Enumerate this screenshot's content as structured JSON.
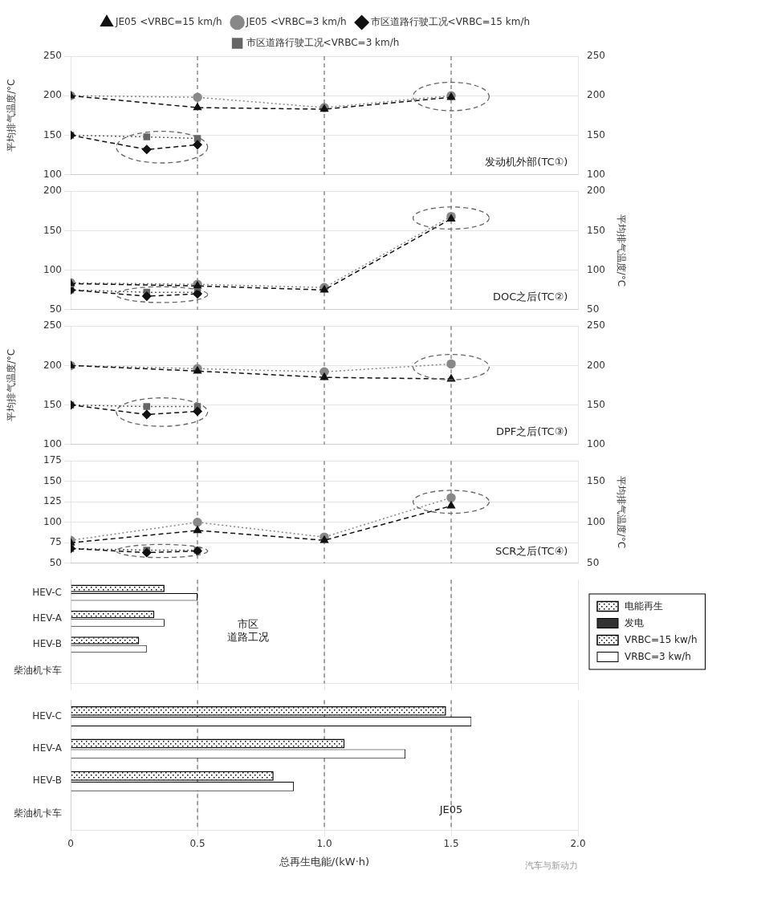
{
  "chart_data": [
    {
      "type": "line",
      "annotations": [
        "发动机外部(TC①)"
      ],
      "ylabel": "平均排气温度/°C",
      "legend": "top",
      "grid": true,
      "tick_labels": "y",
      "xlim": [
        0,
        2.0
      ],
      "xticks": [
        0,
        0.5,
        1.0,
        1.5,
        2.0
      ],
      "ylim": [
        100,
        250
      ],
      "yticks": [
        100,
        150,
        200,
        250
      ],
      "y2lim": [
        100,
        250
      ],
      "y2ticks": [
        100,
        150,
        200,
        250
      ],
      "vlines": [
        0.5,
        1.0,
        1.5
      ],
      "ellipses": [
        {
          "x": 0.36,
          "y": 135,
          "x_radius": 0.18,
          "y_radius": 20
        },
        {
          "x": 1.5,
          "y": 199,
          "x_radius": 0.15,
          "y_radius": 18
        }
      ],
      "series": [
        {
          "name": "JE05 <VRBC=15 km/h",
          "color": "#111111",
          "marker": "triangle",
          "line_style": "dashed",
          "x": [
            0,
            0.5,
            1.0,
            1.5
          ],
          "values": [
            200,
            185,
            183,
            198
          ]
        },
        {
          "name": "JE05 <VRBC=3 km/h",
          "color": "#888888",
          "marker": "circle",
          "line_style": "dotted",
          "x": [
            0,
            0.5,
            1.0,
            1.5
          ],
          "values": [
            200,
            198,
            185,
            200
          ]
        },
        {
          "name": "市区道路行驶工况<VRBC=15 km/h",
          "color": "#111111",
          "marker": "diamond",
          "line_style": "dashed",
          "x": [
            0,
            0.3,
            0.5
          ],
          "values": [
            150,
            132,
            138
          ]
        },
        {
          "name": "市区道路行驶工况<VRBC=3 km/h",
          "color": "#666666",
          "marker": "square",
          "line_style": "dotted",
          "x": [
            0,
            0.3,
            0.5
          ],
          "values": [
            150,
            148,
            146
          ]
        }
      ]
    },
    {
      "type": "line",
      "annotations": [
        "DOC之后(TC②)"
      ],
      "y2label": "平均排气温度/°C",
      "grid": true,
      "tick_labels": "y",
      "xlim": [
        0,
        2.0
      ],
      "xticks": [
        0,
        0.5,
        1.0,
        1.5,
        2.0
      ],
      "ylim": [
        50,
        200
      ],
      "yticks": [
        50,
        100,
        150,
        200
      ],
      "y2lim": [
        50,
        200
      ],
      "y2ticks": [
        50,
        100,
        150,
        200
      ],
      "vlines": [
        0.5,
        1.0,
        1.5
      ],
      "ellipses": [
        {
          "x": 0.36,
          "y": 69,
          "x_radius": 0.18,
          "y_radius": 10
        },
        {
          "x": 1.5,
          "y": 166,
          "x_radius": 0.15,
          "y_radius": 14
        }
      ],
      "series": [
        {
          "name": "JE05 <VRBC=15 km/h",
          "color": "#111111",
          "marker": "triangle",
          "line_style": "dashed",
          "x": [
            0,
            0.5,
            1.0,
            1.5
          ],
          "values": [
            83,
            80,
            75,
            165
          ]
        },
        {
          "name": "JE05 <VRBC=3 km/h",
          "color": "#888888",
          "marker": "circle",
          "line_style": "dotted",
          "x": [
            0,
            0.5,
            1.0,
            1.5
          ],
          "values": [
            84,
            82,
            78,
            168
          ]
        },
        {
          "name": "市区道路行驶工况<VRBC=15 km/h",
          "color": "#111111",
          "marker": "diamond",
          "line_style": "dashed",
          "x": [
            0,
            0.3,
            0.5
          ],
          "values": [
            75,
            67,
            70
          ]
        },
        {
          "name": "市区道路行驶工况<VRBC=3 km/h",
          "color": "#666666",
          "marker": "square",
          "line_style": "dotted",
          "x": [
            0,
            0.3,
            0.5
          ],
          "values": [
            75,
            72,
            72
          ]
        }
      ]
    },
    {
      "type": "line",
      "annotations": [
        "DPF之后(TC③)"
      ],
      "ylabel": "平均排气温度/°C",
      "grid": true,
      "tick_labels": "y",
      "xlim": [
        0,
        2.0
      ],
      "xticks": [
        0,
        0.5,
        1.0,
        1.5,
        2.0
      ],
      "ylim": [
        100,
        250
      ],
      "yticks": [
        100,
        150,
        200,
        250
      ],
      "y2lim": [
        100,
        250
      ],
      "y2ticks": [
        100,
        150,
        200,
        250
      ],
      "vlines": [
        0.5,
        1.0,
        1.5
      ],
      "ellipses": [
        {
          "x": 0.36,
          "y": 141,
          "x_radius": 0.18,
          "y_radius": 18
        },
        {
          "x": 1.5,
          "y": 198,
          "x_radius": 0.15,
          "y_radius": 16
        }
      ],
      "series": [
        {
          "name": "JE05 <VRBC=15 km/h",
          "color": "#111111",
          "marker": "triangle",
          "line_style": "dashed",
          "x": [
            0,
            0.5,
            1.0,
            1.5
          ],
          "values": [
            200,
            193,
            185,
            183
          ]
        },
        {
          "name": "JE05 <VRBC=3 km/h",
          "color": "#888888",
          "marker": "circle",
          "line_style": "dotted",
          "x": [
            0,
            0.5,
            1.0,
            1.5
          ],
          "values": [
            200,
            196,
            192,
            202
          ]
        },
        {
          "name": "市区道路行驶工况<VRBC=15 km/h",
          "color": "#111111",
          "marker": "diamond",
          "line_style": "dashed",
          "x": [
            0,
            0.3,
            0.5
          ],
          "values": [
            150,
            138,
            142
          ]
        },
        {
          "name": "市区道路行驶工况<VRBC=3 km/h",
          "color": "#666666",
          "marker": "square",
          "line_style": "dotted",
          "x": [
            0,
            0.3,
            0.5
          ],
          "values": [
            150,
            148,
            148
          ]
        }
      ]
    },
    {
      "type": "line",
      "annotations": [
        "SCR之后(TC④)"
      ],
      "y2label": "平均排气温度/°C",
      "grid": true,
      "tick_labels": "y",
      "xlim": [
        0,
        2.0
      ],
      "xticks": [
        0,
        0.5,
        1.0,
        1.5,
        2.0
      ],
      "ylim": [
        50,
        175
      ],
      "yticks": [
        50,
        75,
        100,
        125,
        150,
        175
      ],
      "y2lim": [
        50,
        175
      ],
      "y2ticks": [
        50,
        100,
        150
      ],
      "vlines": [
        0.5,
        1.0,
        1.5
      ],
      "ellipses": [
        {
          "x": 0.36,
          "y": 65,
          "x_radius": 0.18,
          "y_radius": 8
        },
        {
          "x": 1.5,
          "y": 125,
          "x_radius": 0.15,
          "y_radius": 14
        }
      ],
      "series": [
        {
          "name": "JE05 <VRBC=15 km/h",
          "color": "#111111",
          "marker": "triangle",
          "line_style": "dashed",
          "x": [
            0,
            0.5,
            1.0,
            1.5
          ],
          "values": [
            75,
            90,
            78,
            120
          ]
        },
        {
          "name": "JE05 <VRBC=3 km/h",
          "color": "#888888",
          "marker": "circle",
          "line_style": "dotted",
          "x": [
            0,
            0.5,
            1.0,
            1.5
          ],
          "values": [
            78,
            100,
            82,
            130
          ]
        },
        {
          "name": "市区道路行驶工况<VRBC=15 km/h",
          "color": "#111111",
          "marker": "diamond",
          "line_style": "dashed",
          "x": [
            0,
            0.3,
            0.5
          ],
          "values": [
            68,
            63,
            65
          ]
        },
        {
          "name": "市区道路行驶工况<VRBC=3 km/h",
          "color": "#666666",
          "marker": "square",
          "line_style": "dotted",
          "x": [
            0,
            0.3,
            0.5
          ],
          "values": [
            68,
            66,
            66
          ]
        }
      ]
    },
    {
      "type": "bar",
      "orientation": "horizontal",
      "annotations": [
        "市区\n道路工况"
      ],
      "legend": "right",
      "grid": true,
      "tick_labels": "y",
      "categories": [
        "柴油机卡车",
        "HEV-B",
        "HEV-A",
        "HEV-C"
      ],
      "xlim": [
        0,
        2.0
      ],
      "xticks": [
        0,
        0.5,
        1.0,
        1.5,
        2.0
      ],
      "vlines": [
        0.5,
        1.0,
        1.5
      ],
      "series": [
        {
          "name": "电能再生",
          "color": "#ffffff",
          "marker": "dots",
          "values": [
            null,
            null,
            null,
            null
          ]
        },
        {
          "name": "发电",
          "color": "#333333",
          "values": [
            null,
            null,
            null,
            null
          ]
        },
        {
          "name": "VRBC=15 kw/h",
          "color": "#ffffff",
          "marker": "dots",
          "values": [
            null,
            0.27,
            0.33,
            0.37
          ]
        },
        {
          "name": "VRBC=3 kw/h",
          "color": "#ffffff",
          "values": [
            null,
            0.3,
            0.37,
            0.5
          ]
        }
      ]
    },
    {
      "type": "bar",
      "orientation": "horizontal",
      "annotations": [
        "JE05",
        "汽车与新动力"
      ],
      "xlabel": "总再生电能/(kW·h)",
      "grid": true,
      "categories": [
        "柴油机卡车",
        "HEV-B",
        "HEV-A",
        "HEV-C"
      ],
      "xlim": [
        0,
        2.0
      ],
      "xticks": [
        0,
        0.5,
        {
          "value": 1.0,
          "label": "1.0"
        },
        1.5,
        {
          "value": 2.0,
          "label": "2.0"
        }
      ],
      "vlines": [
        0.5,
        1.0,
        1.5
      ],
      "series": [
        {
          "name": "VRBC=15 kw/h",
          "color": "#ffffff",
          "marker": "dots",
          "values": [
            null,
            0.8,
            1.08,
            1.48
          ]
        },
        {
          "name": "VRBC=3 kw/h",
          "color": "#ffffff",
          "values": [
            null,
            0.88,
            1.32,
            1.58
          ]
        }
      ]
    }
  ]
}
